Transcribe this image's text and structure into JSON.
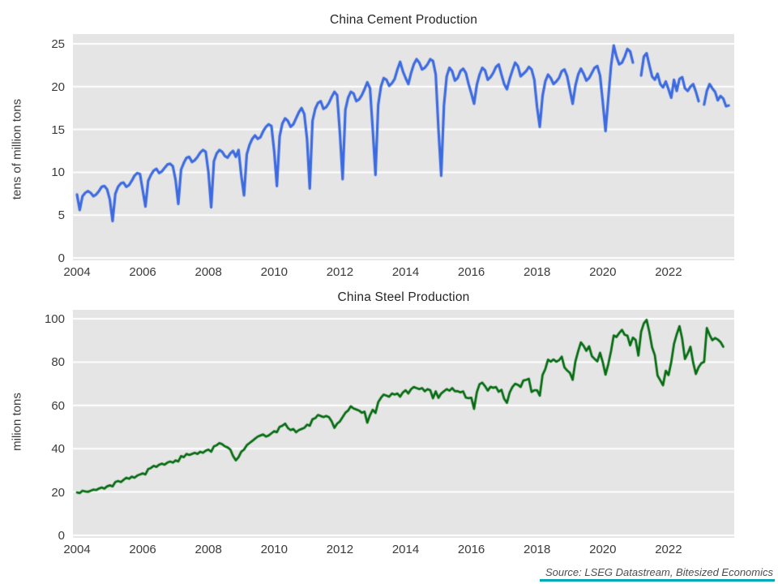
{
  "page": {
    "source_note": "Source: LSEG Datastream, Bitesized Economics"
  },
  "colors": {
    "plot_background": "#e5e5e5",
    "gridline": "#ffffff",
    "cement_line": "#3c6ae0",
    "steel_line": "#066c12",
    "accent_teal": "#00a9b7"
  },
  "chart_data": [
    {
      "type": "line",
      "title": "China Cement Production",
      "ylabel": "tens of million tons",
      "series_name": "China cement production, monthly",
      "color": "#3c6ae0",
      "line_width": 3.2,
      "ylim": [
        0,
        25
      ],
      "y_ticks": [
        0,
        5,
        10,
        15,
        20,
        25
      ],
      "x_ticks": [
        2004,
        2006,
        2008,
        2010,
        2012,
        2014,
        2016,
        2018,
        2020,
        2022
      ],
      "frequency": "monthly",
      "x_start": "2004-01",
      "grid": true,
      "values_by_year": {
        "2004": [
          7.4,
          5.6,
          7.2,
          7.6,
          7.8,
          7.6,
          7.2,
          7.4,
          7.8,
          8.3,
          8.4,
          8.0
        ],
        "2005": [
          6.8,
          4.3,
          7.5,
          8.3,
          8.7,
          8.8,
          8.3,
          8.5,
          9.0,
          9.6,
          9.9,
          9.8
        ],
        "2006": [
          7.9,
          6.0,
          9.0,
          9.7,
          10.2,
          10.4,
          9.9,
          10.1,
          10.5,
          10.9,
          11.0,
          10.7
        ],
        "2007": [
          9.1,
          6.3,
          10.3,
          11.1,
          11.7,
          11.8,
          11.2,
          11.4,
          11.8,
          12.3,
          12.6,
          12.4
        ],
        "2008": [
          10.0,
          5.9,
          11.3,
          12.2,
          12.6,
          12.4,
          11.9,
          11.7,
          12.2,
          12.5,
          11.8,
          12.6
        ],
        "2009": [
          9.6,
          7.3,
          12.1,
          13.2,
          13.9,
          14.3,
          13.9,
          14.1,
          14.8,
          15.3,
          15.6,
          15.4
        ],
        "2010": [
          12.5,
          8.4,
          14.2,
          15.7,
          16.3,
          16.0,
          15.3,
          15.6,
          16.3,
          17.0,
          17.5,
          16.8
        ],
        "2011": [
          13.9,
          8.1,
          16.0,
          17.4,
          18.1,
          18.3,
          17.4,
          17.6,
          18.1,
          18.8,
          19.4,
          19.0
        ],
        "2012": [
          14.6,
          9.2,
          17.3,
          18.7,
          19.4,
          19.2,
          18.3,
          18.5,
          19.0,
          19.7,
          20.5,
          19.8
        ],
        "2013": [
          15.0,
          9.7,
          17.9,
          20.0,
          21.0,
          20.8,
          20.1,
          20.4,
          20.9,
          22.0,
          22.9,
          21.8
        ],
        "2014": [
          21.0,
          20.3,
          21.6,
          22.6,
          23.2,
          22.8,
          22.0,
          22.2,
          22.6,
          23.2,
          23.0,
          21.4
        ],
        "2015": [
          15.0,
          9.6,
          17.8,
          21.2,
          22.2,
          21.8,
          20.7,
          21.0,
          21.8,
          22.1,
          21.6,
          20.3
        ],
        "2016": [
          19.2,
          18.0,
          20.2,
          21.4,
          22.2,
          21.9,
          20.8,
          21.1,
          21.6,
          22.3,
          22.6,
          21.4
        ],
        "2017": [
          20.3,
          19.7,
          20.9,
          21.9,
          22.8,
          22.4,
          21.2,
          21.5,
          21.8,
          22.3,
          22.0,
          20.8
        ],
        "2018": [
          17.6,
          15.3,
          18.9,
          20.6,
          21.4,
          21.0,
          20.3,
          20.6,
          21.0,
          21.8,
          22.0,
          21.2
        ],
        "2019": [
          19.6,
          18.0,
          20.1,
          21.4,
          22.1,
          21.5,
          20.7,
          21.0,
          21.6,
          22.2,
          22.4,
          21.3
        ],
        "2020": [
          18.2,
          14.8,
          18.6,
          22.4,
          24.8,
          23.5,
          22.6,
          22.8,
          23.5,
          24.4,
          24.1,
          22.8
        ],
        "2021": [
          null,
          null,
          21.3,
          23.5,
          23.9,
          22.5,
          21.2,
          20.8,
          21.5,
          20.3,
          19.9,
          20.6
        ],
        "2022": [
          19.7,
          18.7,
          20.8,
          19.5,
          20.9,
          21.1,
          19.8,
          19.5,
          20.0,
          20.3,
          19.4,
          18.3
        ],
        "2023": [
          null,
          17.9,
          19.5,
          20.3,
          19.8,
          19.4,
          18.4,
          18.9,
          18.6,
          17.7,
          17.8
        ]
      }
    },
    {
      "type": "line",
      "title": "China Steel Production",
      "ylabel": "milion tons",
      "series_name": "China steel production, monthly",
      "color": "#066c12",
      "line_width": 2.8,
      "ylim": [
        0,
        100
      ],
      "y_ticks": [
        0,
        20,
        40,
        60,
        80,
        100
      ],
      "x_ticks": [
        2004,
        2006,
        2008,
        2010,
        2012,
        2014,
        2016,
        2018,
        2020,
        2022
      ],
      "frequency": "monthly",
      "x_start": "2004-01",
      "grid": true,
      "values_by_year": {
        "2004": [
          19.8,
          19.5,
          20.6,
          20.3,
          20.1,
          20.6,
          21.1,
          20.9,
          21.6,
          22.1,
          21.6,
          22.6
        ],
        "2005": [
          23.1,
          22.6,
          24.6,
          25.1,
          24.6,
          25.6,
          26.6,
          26.1,
          27.1,
          26.6,
          27.6,
          28.1
        ],
        "2006": [
          28.6,
          28.1,
          30.6,
          31.1,
          32.1,
          31.6,
          32.6,
          33.1,
          32.6,
          33.6,
          34.1,
          33.6
        ],
        "2007": [
          34.6,
          34.1,
          36.6,
          36.1,
          37.6,
          37.1,
          37.6,
          38.1,
          37.6,
          38.6,
          38.1,
          39.1
        ],
        "2008": [
          39.6,
          38.6,
          41.1,
          41.6,
          42.6,
          42.1,
          41.1,
          40.6,
          39.6,
          36.6,
          34.6,
          36.1
        ],
        "2009": [
          38.6,
          39.6,
          41.6,
          42.6,
          43.6,
          44.6,
          45.6,
          46.1,
          46.6,
          45.6,
          46.1,
          47.1
        ],
        "2010": [
          48.1,
          47.6,
          50.1,
          50.6,
          51.6,
          49.6,
          48.6,
          49.1,
          47.6,
          48.6,
          49.1,
          49.6
        ],
        "2011": [
          51.1,
          50.6,
          53.6,
          54.1,
          55.6,
          55.1,
          54.6,
          55.1,
          54.6,
          52.6,
          49.6,
          51.6
        ],
        "2012": [
          52.6,
          54.6,
          56.6,
          57.6,
          59.6,
          58.6,
          58.1,
          57.6,
          56.6,
          57.1,
          52.0,
          55.5
        ],
        "2013": [
          58.0,
          56.5,
          61.5,
          63.5,
          65.0,
          64.5,
          64.0,
          65.5,
          65.0,
          65.5,
          64.0,
          66.0
        ],
        "2014": [
          67.0,
          65.5,
          67.5,
          68.5,
          68.0,
          67.5,
          68.0,
          66.5,
          67.5,
          67.0,
          63.3,
          66.5
        ],
        "2015": [
          63.5,
          65.5,
          66.5,
          67.5,
          66.8,
          68.0,
          66.5,
          66.6,
          66.0,
          66.5,
          63.6,
          63.3
        ],
        "2016": [
          63.5,
          58.4,
          66.0,
          69.8,
          70.5,
          68.9,
          66.8,
          68.6,
          68.1,
          68.5,
          66.3,
          67.2
        ],
        "2017": [
          63.0,
          61.2,
          66.0,
          68.5,
          70.0,
          69.5,
          68.5,
          71.5,
          71.8,
          72.3,
          66.2,
          67.0
        ],
        "2018": [
          67.0,
          64.5,
          74.0,
          76.7,
          81.1,
          80.2,
          81.2,
          80.2,
          80.8,
          82.5,
          77.6,
          76.1
        ],
        "2019": [
          75.0,
          71.8,
          80.3,
          85.0,
          89.1,
          87.5,
          85.2,
          87.3,
          82.8,
          81.5,
          80.3,
          84.3
        ],
        "2020": [
          79.9,
          74.2,
          79.0,
          85.0,
          92.3,
          91.6,
          93.4,
          94.9,
          92.6,
          92.2,
          87.7,
          91.3
        ],
        "2021": [
          90.2,
          83.0,
          94.0,
          97.9,
          99.5,
          93.9,
          86.8,
          83.2,
          73.8,
          71.6,
          69.3,
          76.0
        ],
        "2022": [
          74.0,
          80.0,
          88.3,
          92.8,
          96.6,
          90.7,
          81.4,
          83.9,
          87.1,
          79.8,
          74.5,
          77.6
        ],
        "2023": [
          79.5,
          80.1,
          95.7,
          92.6,
          90.1,
          91.1,
          90.4,
          89.2,
          87.1
        ]
      }
    }
  ]
}
